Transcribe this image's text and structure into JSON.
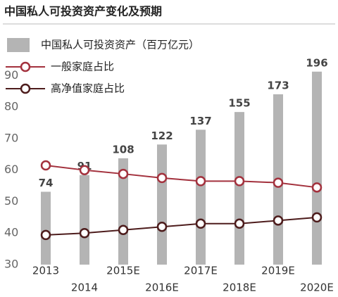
{
  "chart_data": {
    "type": "bar-line",
    "title": "中国私人可投资资产变化及预期",
    "categories": [
      "2013",
      "2014",
      "2015E",
      "2016E",
      "2017E",
      "2018E",
      "2019E",
      "2020E"
    ],
    "ylim": [
      30,
      95
    ],
    "yticks": [
      30,
      40,
      50,
      60,
      70,
      80,
      90
    ],
    "y2lim": [
      0,
      208
    ],
    "grid": false,
    "series": [
      {
        "name": "中国私人可投资资产（百万亿元）",
        "type": "bar",
        "axis": "y2",
        "color": "#b4b4b4",
        "values": [
          74,
          91,
          108,
          122,
          137,
          155,
          173,
          196
        ]
      },
      {
        "name": "一般家庭占比",
        "type": "line",
        "color": "#a3313d",
        "values": [
          61.5,
          60,
          58.8,
          57.5,
          56.5,
          56.5,
          56,
          54.5
        ]
      },
      {
        "name": "高净值家庭占比",
        "type": "line",
        "color": "#4d1c1c",
        "values": [
          39.4,
          40,
          41,
          42,
          43,
          43,
          44,
          45
        ]
      }
    ]
  }
}
